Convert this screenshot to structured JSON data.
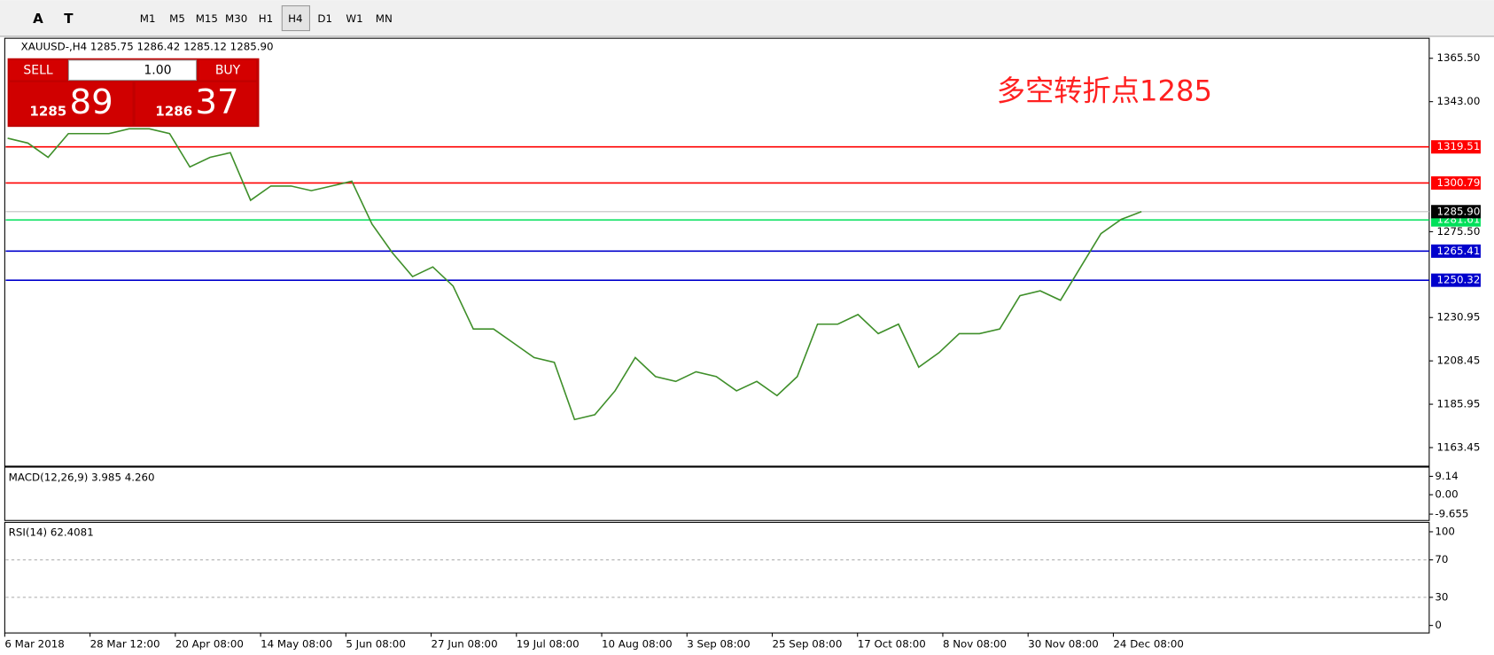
{
  "toolbar": {
    "buttons": [
      "M1",
      "M5",
      "M15",
      "M30",
      "H1",
      "H4",
      "D1",
      "W1",
      "MN"
    ],
    "active": "H4",
    "tools": [
      "A",
      "T"
    ]
  },
  "chart_data": {
    "type": "line",
    "symbol_info": "XAUUSD-,H4  1285.75 1286.42 1285.12 1285.90",
    "annotation": "多空转折点1285",
    "trade_panel": {
      "sell": "SELL",
      "buy": "BUY",
      "volume": "1.00",
      "bid_big": "1285",
      "bid_small": "89",
      "ask_big": "1286",
      "ask_small": "37"
    },
    "ylim": [
      1154.3,
      1375.4
    ],
    "yticks": [
      {
        "value": 1365.5,
        "label": "1365.50"
      },
      {
        "value": 1343,
        "label": "1343.00"
      },
      {
        "value": 1275.5,
        "label": "1275.50"
      },
      {
        "value": 1230.95,
        "label": "1230.95"
      },
      {
        "value": 1208.45,
        "label": "1208.45"
      },
      {
        "value": 1185.95,
        "label": "1185.95"
      },
      {
        "value": 1163.45,
        "label": "1163.45"
      }
    ],
    "levels": [
      {
        "value": 1319.51,
        "color": "#ff0000"
      },
      {
        "value": 1300.79,
        "color": "#ff0000"
      },
      {
        "value": 1281.61,
        "color": "#00e05a"
      },
      {
        "value": 1265.41,
        "color": "#0000cc"
      },
      {
        "value": 1250.32,
        "color": "#0000cc"
      }
    ],
    "close": {
      "value": 1285.9,
      "label": "1285.90"
    },
    "price_color": "#3f8f2a",
    "prices": [
      1324.0,
      1321.5,
      1314.1,
      1326.4,
      1326.4,
      1326.4,
      1328.9,
      1328.9,
      1326.4,
      1309.1,
      1314.1,
      1316.5,
      1291.8,
      1299.2,
      1299.2,
      1296.8,
      1299.2,
      1301.7,
      1279.4,
      1264.6,
      1252.2,
      1257.2,
      1247.3,
      1225.0,
      1225.0,
      1217.6,
      1210.2,
      1207.7,
      1178.0,
      1180.5,
      1192.9,
      1210.2,
      1200.3,
      1197.8,
      1202.8,
      1200.3,
      1192.9,
      1197.8,
      1190.4,
      1200.3,
      1227.5,
      1227.5,
      1232.5,
      1222.6,
      1227.5,
      1205.2,
      1212.7,
      1222.6,
      1222.6,
      1225.0,
      1242.3,
      1244.8,
      1239.9,
      1257.2,
      1274.5,
      1281.9,
      1285.9
    ],
    "x_labels": [
      "6 Mar 2018",
      "28 Mar 12:00",
      "20 Apr 08:00",
      "14 May 08:00",
      "5 Jun 08:00",
      "27 Jun 08:00",
      "19 Jul 08:00",
      "10 Aug 08:00",
      "3 Sep 08:00",
      "25 Sep 08:00",
      "17 Oct 08:00",
      "8 Nov 08:00",
      "30 Nov 08:00",
      "24 Dec 08:00"
    ]
  },
  "macd": {
    "label": "MACD(12,26,9) 3.985 4.260",
    "ylim": [
      -12.33,
      13.25
    ],
    "yticks": [
      9.14,
      {
        "value": 0,
        "label": "0.00"
      },
      -9.655
    ]
  },
  "rsi": {
    "label": "RSI(14) 62.4081",
    "ylim": [
      -7,
      109
    ],
    "yticks": [
      100,
      70,
      30,
      0
    ],
    "grid_levels": [
      70,
      30
    ]
  }
}
